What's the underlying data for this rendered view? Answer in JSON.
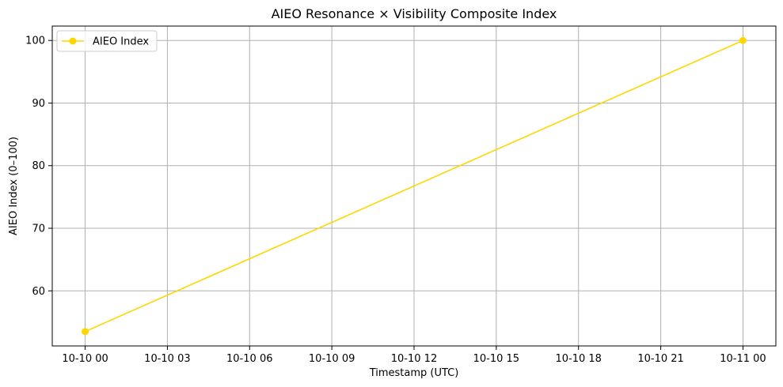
{
  "chart_data": {
    "type": "line",
    "title": "AIEO Resonance × Visibility Composite Index",
    "xlabel": "Timestamp (UTC)",
    "ylabel": "AIEO Index (0–100)",
    "x_ticks": [
      "10-10 00",
      "10-10 03",
      "10-10 06",
      "10-10 09",
      "10-10 12",
      "10-10 15",
      "10-10 18",
      "10-10 21",
      "10-11 00"
    ],
    "y_ticks": [
      "60",
      "70",
      "80",
      "90",
      "100"
    ],
    "xlim": [
      "10-09 22:48",
      "10-11 01:12"
    ],
    "ylim": [
      51.2,
      102.3
    ],
    "grid": true,
    "legend_position": "top-left",
    "series": [
      {
        "name": "AIEO Index",
        "color": "#FFD700",
        "marker": "circle",
        "x": [
          "10-10 00:00",
          "10-11 00:00"
        ],
        "values": [
          53.5,
          100
        ]
      }
    ]
  }
}
